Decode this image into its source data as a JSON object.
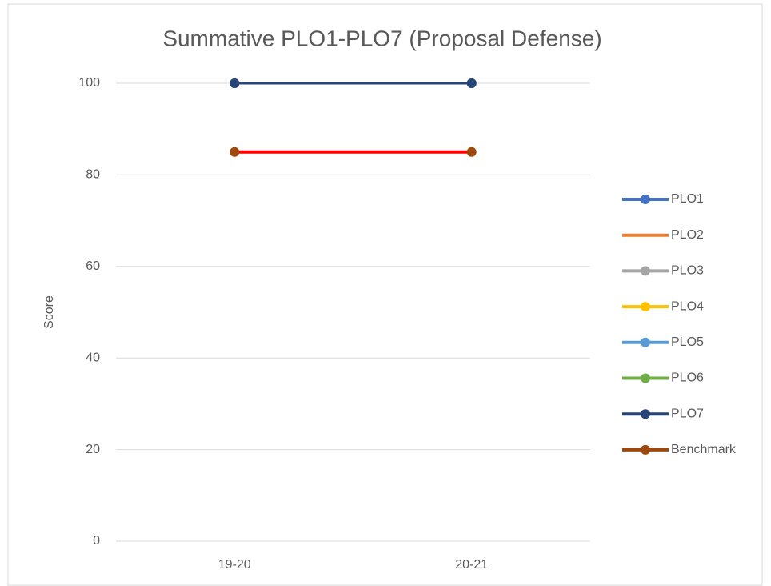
{
  "chart_data": {
    "type": "line",
    "title": "Summative PLO1-PLO7 (Proposal Defense)",
    "ylabel": "Score",
    "categories": [
      "19-20",
      "20-21"
    ],
    "series": [
      {
        "name": "PLO1",
        "color": "#4472c4",
        "values": [
          100,
          100
        ],
        "marker": true
      },
      {
        "name": "PLO2",
        "color": "#ed7d31",
        "values": [
          100,
          100
        ],
        "marker": false
      },
      {
        "name": "PLO3",
        "color": "#a5a5a5",
        "values": [
          100,
          100
        ],
        "marker": true
      },
      {
        "name": "PLO4",
        "color": "#ffc000",
        "values": [
          100,
          100
        ],
        "marker": true
      },
      {
        "name": "PLO5",
        "color": "#5b9bd5",
        "values": [
          100,
          100
        ],
        "marker": true
      },
      {
        "name": "PLO6",
        "color": "#70ad47",
        "values": [
          100,
          100
        ],
        "marker": true
      },
      {
        "name": "PLO7",
        "color": "#264478",
        "values": [
          100,
          100
        ],
        "marker": true
      },
      {
        "name": "Benchmark",
        "color": "#9e480e",
        "line_color": "#ff0000",
        "values": [
          85,
          85
        ],
        "marker": true
      }
    ],
    "ylim": [
      0,
      100
    ],
    "yticks": [
      0,
      20,
      40,
      60,
      80,
      100
    ],
    "grid": true,
    "legend": "right"
  }
}
